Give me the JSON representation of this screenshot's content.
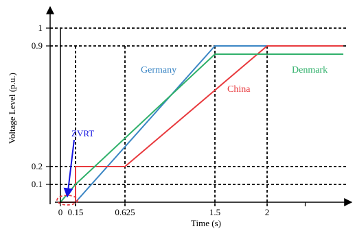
{
  "chart_data": {
    "type": "line",
    "title": "",
    "xlabel": "Time (s)",
    "ylabel": "Voltage Level (p.u.)",
    "xlim": [
      0,
      2.8
    ],
    "ylim": [
      0,
      1.05
    ],
    "x_ticks": [
      {
        "value": 0,
        "label": "0"
      },
      {
        "value": 0.15,
        "label": "0.15"
      },
      {
        "value": 0.625,
        "label": "0.625"
      },
      {
        "value": 1.5,
        "label": "1.5"
      },
      {
        "value": 2,
        "label": "2"
      }
    ],
    "y_ticks": [
      {
        "value": 0.1,
        "label": "0.1"
      },
      {
        "value": 0.2,
        "label": "0.2"
      },
      {
        "value": 0.9,
        "label": "0.9"
      },
      {
        "value": 1,
        "label": "1"
      }
    ],
    "reference_lines": {
      "horizontal": [
        0.1,
        0.2,
        0.9,
        1
      ],
      "vertical": [
        0.15,
        0.625,
        1.5,
        2
      ]
    },
    "series": [
      {
        "name": "Germany",
        "color": "#3a85c4",
        "x": [
          0,
          0.15,
          1.5,
          2
        ],
        "y": [
          0,
          0,
          0.9,
          0.9
        ]
      },
      {
        "name": "China",
        "color": "#e8393d",
        "x": [
          0,
          0.15,
          0.15,
          0.625,
          2,
          2.8
        ],
        "y": [
          0,
          0,
          0.2,
          0.2,
          0.9,
          0.9
        ]
      },
      {
        "name": "Denmark",
        "color": "#2fb06a",
        "x": [
          0,
          0.15,
          1.5,
          2.8
        ],
        "y": [
          0,
          0.1,
          0.85,
          0.85
        ]
      }
    ],
    "annotations": [
      {
        "text": "ZVRT",
        "color": "#1515e0"
      }
    ],
    "grid": false
  }
}
